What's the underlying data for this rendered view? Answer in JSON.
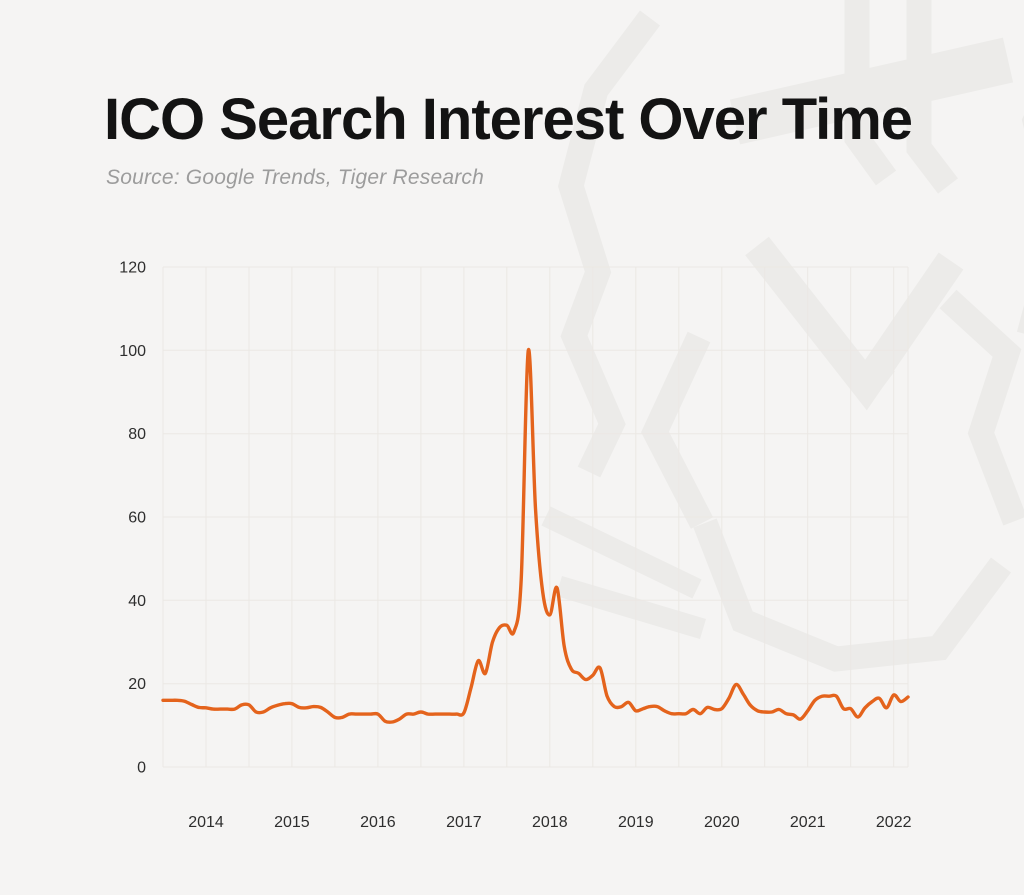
{
  "page": {
    "background": "#f5f4f3",
    "watermark": "tiger-logo",
    "watermark_color": "#ecebe9"
  },
  "header": {
    "title": "ICO Search Interest Over Time",
    "subtitle": "Source: Google Trends, Tiger Research"
  },
  "chart_data": {
    "type": "line",
    "title": "ICO Search Interest Over Time",
    "series_name": "ICO search interest (Google Trends index)",
    "line_color": "#e4631c",
    "grid": true,
    "grid_color": "#ebe8e4",
    "tick_color": "#2e2e2e",
    "legend": "none",
    "xlabel": "",
    "ylabel": "",
    "ylim": [
      0,
      120
    ],
    "y_ticks": [
      0,
      20,
      40,
      60,
      80,
      100,
      120
    ],
    "x_tick_labels": [
      "2014",
      "2015",
      "2016",
      "2017",
      "2018",
      "2019",
      "2020",
      "2021",
      "2022"
    ],
    "x": [
      "2013-07",
      "2013-08",
      "2013-09",
      "2013-10",
      "2013-11",
      "2013-12",
      "2014-01",
      "2014-02",
      "2014-03",
      "2014-04",
      "2014-05",
      "2014-06",
      "2014-07",
      "2014-08",
      "2014-09",
      "2014-10",
      "2014-11",
      "2014-12",
      "2015-01",
      "2015-02",
      "2015-03",
      "2015-04",
      "2015-05",
      "2015-06",
      "2015-07",
      "2015-08",
      "2015-09",
      "2015-10",
      "2015-11",
      "2015-12",
      "2016-01",
      "2016-02",
      "2016-03",
      "2016-04",
      "2016-05",
      "2016-06",
      "2016-07",
      "2016-08",
      "2016-09",
      "2016-10",
      "2016-11",
      "2016-12",
      "2017-01",
      "2017-02",
      "2017-03",
      "2017-04",
      "2017-05",
      "2017-06",
      "2017-07",
      "2017-08",
      "2017-09",
      "2017-10",
      "2017-11",
      "2017-12",
      "2018-01",
      "2018-02",
      "2018-03",
      "2018-04",
      "2018-05",
      "2018-06",
      "2018-07",
      "2018-08",
      "2018-09",
      "2018-10",
      "2018-11",
      "2018-12",
      "2019-01",
      "2019-02",
      "2019-03",
      "2019-04",
      "2019-05",
      "2019-06",
      "2019-07",
      "2019-08",
      "2019-09",
      "2019-10",
      "2019-11",
      "2019-12",
      "2020-01",
      "2020-02",
      "2020-03",
      "2020-04",
      "2020-05",
      "2020-06",
      "2020-07",
      "2020-08",
      "2020-09",
      "2020-10",
      "2020-11",
      "2020-12",
      "2021-01",
      "2021-02",
      "2021-03",
      "2021-04",
      "2021-05",
      "2021-06",
      "2021-07",
      "2021-08",
      "2021-09",
      "2021-10",
      "2021-11",
      "2021-12",
      "2022-01",
      "2022-02",
      "2022-03"
    ],
    "values": [
      16,
      16,
      16,
      15.8,
      15,
      14.3,
      14.2,
      13.9,
      13.9,
      13.9,
      13.9,
      14.9,
      14.9,
      13.2,
      13.2,
      14.2,
      14.8,
      15.2,
      15.2,
      14.3,
      14.2,
      14.5,
      14.3,
      13.2,
      11.9,
      11.9,
      12.7,
      12.7,
      12.7,
      12.7,
      12.7,
      11,
      10.8,
      11.5,
      12.7,
      12.7,
      13.2,
      12.7,
      12.7,
      12.7,
      12.7,
      12.7,
      13,
      19,
      25.5,
      22.5,
      30,
      33.5,
      34,
      32.5,
      45,
      100,
      62,
      42,
      36.5,
      43,
      29,
      23.5,
      22.5,
      21,
      22,
      23.8,
      17,
      14.5,
      14.5,
      15.5,
      13.5,
      14,
      14.5,
      14.5,
      13.5,
      12.8,
      12.8,
      12.8,
      13.8,
      12.8,
      14.3,
      13.8,
      14,
      16.5,
      19.8,
      17.5,
      14.8,
      13.5,
      13.2,
      13.2,
      13.8,
      12.8,
      12.5,
      11.5,
      13.5,
      16,
      17,
      17,
      17,
      14,
      14,
      12,
      14.2,
      15.7,
      16.5,
      14.2,
      17.3,
      15.7,
      16.8
    ]
  }
}
